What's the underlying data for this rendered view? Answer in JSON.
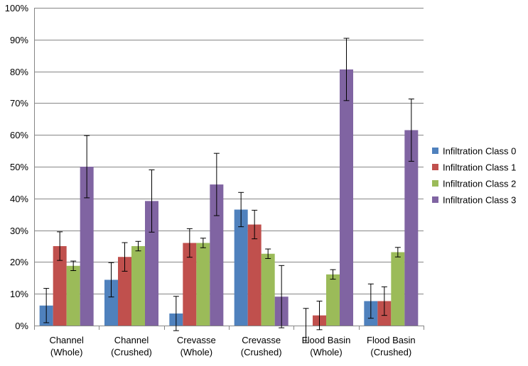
{
  "chart_data": {
    "type": "bar",
    "title": "",
    "xlabel": "",
    "ylabel": "",
    "ylim": [
      0,
      100
    ],
    "y_ticks": [
      0,
      10,
      20,
      30,
      40,
      50,
      60,
      70,
      80,
      90,
      100
    ],
    "y_tick_labels": [
      "0%",
      "10%",
      "20%",
      "30%",
      "40%",
      "50%",
      "60%",
      "70%",
      "80%",
      "90%",
      "100%"
    ],
    "grid": true,
    "legend_position": "right",
    "categories": [
      {
        "line1": "Channel",
        "line2": "(Whole)"
      },
      {
        "line1": "Channel",
        "line2": "(Crushed)"
      },
      {
        "line1": "Crevasse",
        "line2": "(Whole)"
      },
      {
        "line1": "Crevasse",
        "line2": "(Crushed)"
      },
      {
        "line1": "Flood Basin",
        "line2": "(Whole)"
      },
      {
        "line1": "Flood Basin",
        "line2": "(Crushed)"
      }
    ],
    "series": [
      {
        "name": "Infiltration Class 0",
        "color": "#4f81bd",
        "values": [
          6.3,
          14.4,
          3.8,
          36.5,
          0.0,
          7.7
        ],
        "errors": [
          5.4,
          5.4,
          5.4,
          5.4,
          5.4,
          5.4
        ]
      },
      {
        "name": "Infiltration Class 1",
        "color": "#c0504d",
        "values": [
          25.0,
          21.6,
          26.0,
          31.8,
          3.2,
          7.7
        ],
        "errors": [
          4.5,
          4.5,
          4.5,
          4.5,
          4.5,
          4.5
        ]
      },
      {
        "name": "Infiltration Class 2",
        "color": "#9bbb59",
        "values": [
          18.8,
          25.0,
          26.0,
          22.6,
          16.1,
          23.1
        ],
        "errors": [
          1.5,
          1.5,
          1.5,
          1.5,
          1.5,
          1.5
        ]
      },
      {
        "name": "Infiltration Class 3",
        "color": "#8064a2",
        "values": [
          50.0,
          39.2,
          44.4,
          9.1,
          80.6,
          61.5
        ],
        "errors": [
          9.8,
          9.8,
          9.8,
          9.8,
          9.8,
          9.8
        ]
      }
    ]
  }
}
